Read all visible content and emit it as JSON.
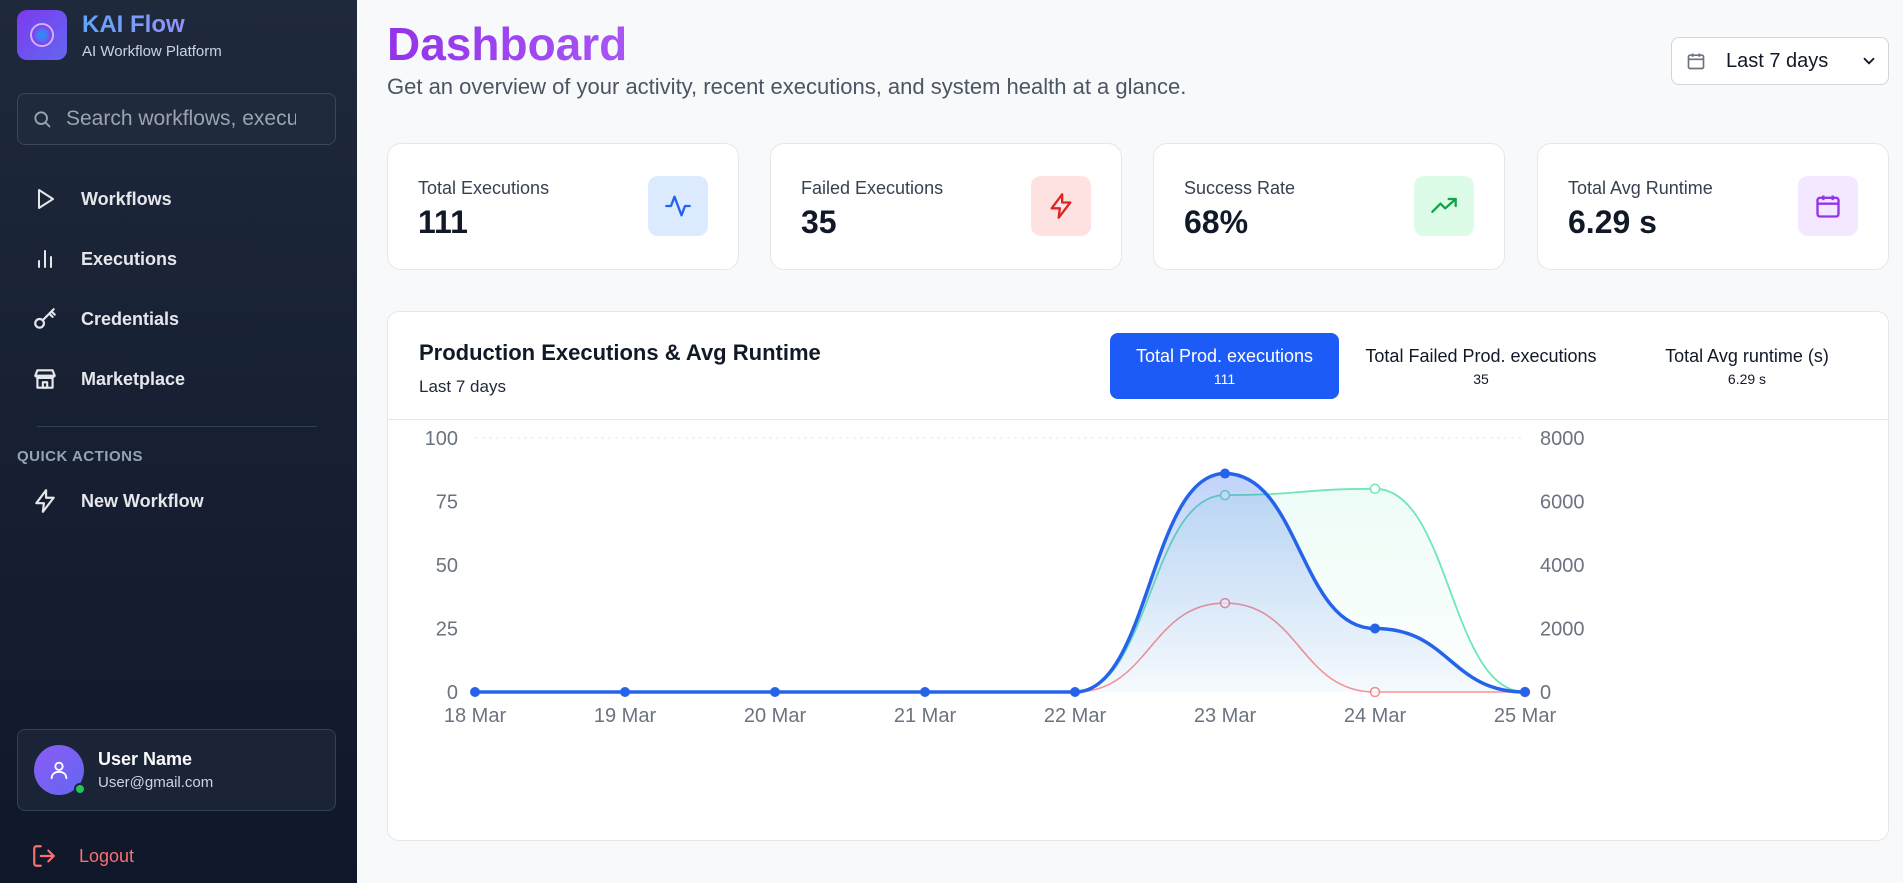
{
  "app": {
    "title": "KAI Flow",
    "subtitle": "AI Workflow Platform"
  },
  "search": {
    "placeholder": "Search workflows, executions..."
  },
  "nav": [
    {
      "label": "Workflows",
      "icon": "play-icon"
    },
    {
      "label": "Executions",
      "icon": "bar-chart-icon"
    },
    {
      "label": "Credentials",
      "icon": "key-icon"
    },
    {
      "label": "Marketplace",
      "icon": "store-icon"
    }
  ],
  "quick_actions": {
    "heading": "QUICK ACTIONS",
    "items": [
      {
        "label": "New Workflow",
        "icon": "zap-icon"
      }
    ]
  },
  "user": {
    "name": "User Name",
    "email": "User@gmail.com"
  },
  "logout_label": "Logout",
  "page": {
    "title": "Dashboard",
    "subtitle": "Get an overview of your activity, recent executions, and system health at a glance."
  },
  "date_filter": {
    "value": "Last 7 days"
  },
  "stats": [
    {
      "label": "Total Executions",
      "value": "111",
      "icon": "activity-icon",
      "color": "#2563eb",
      "bg": "#dbeafe"
    },
    {
      "label": "Failed Executions",
      "value": "35",
      "icon": "zap-icon",
      "color": "#dc2626",
      "bg": "#fee2e2"
    },
    {
      "label": "Success Rate",
      "value": "68%",
      "icon": "trending-up-icon",
      "color": "#16a34a",
      "bg": "#dcfce7"
    },
    {
      "label": "Total Avg Runtime",
      "value": "6.29 s",
      "icon": "calendar-icon",
      "color": "#9333ea",
      "bg": "#f3e8ff"
    }
  ],
  "chart_panel": {
    "title": "Production Executions & Avg Runtime",
    "subtitle": "Last 7 days",
    "tabs": [
      {
        "label": "Total Prod. executions",
        "value": "111",
        "active": true
      },
      {
        "label": "Total Failed Prod. executions",
        "value": "35",
        "active": false
      },
      {
        "label": "Total Avg runtime (s)",
        "value": "6.29 s",
        "active": false
      }
    ]
  },
  "chart_data": {
    "type": "area",
    "categories": [
      "18 Mar",
      "19 Mar",
      "20 Mar",
      "21 Mar",
      "22 Mar",
      "23 Mar",
      "24 Mar",
      "25 Mar"
    ],
    "series": [
      {
        "axis": "left",
        "color": "#2563eb",
        "values": [
          0,
          0,
          0,
          0,
          0,
          86,
          25,
          0
        ]
      },
      {
        "axis": "left",
        "color": "#f87171",
        "values": [
          0,
          0,
          0,
          0,
          0,
          35,
          0,
          0
        ]
      },
      {
        "axis": "right",
        "color": "#6ee7b7",
        "values": [
          0,
          0,
          0,
          0,
          0,
          6200,
          6400,
          0
        ]
      }
    ],
    "y_left": {
      "ticks": [
        "0",
        "25",
        "50",
        "75",
        "100"
      ],
      "range": [
        0,
        100
      ]
    },
    "y_right": {
      "ticks": [
        "0",
        "2000",
        "4000",
        "6000",
        "8000"
      ],
      "range": [
        0,
        8000
      ]
    },
    "grid": true
  }
}
